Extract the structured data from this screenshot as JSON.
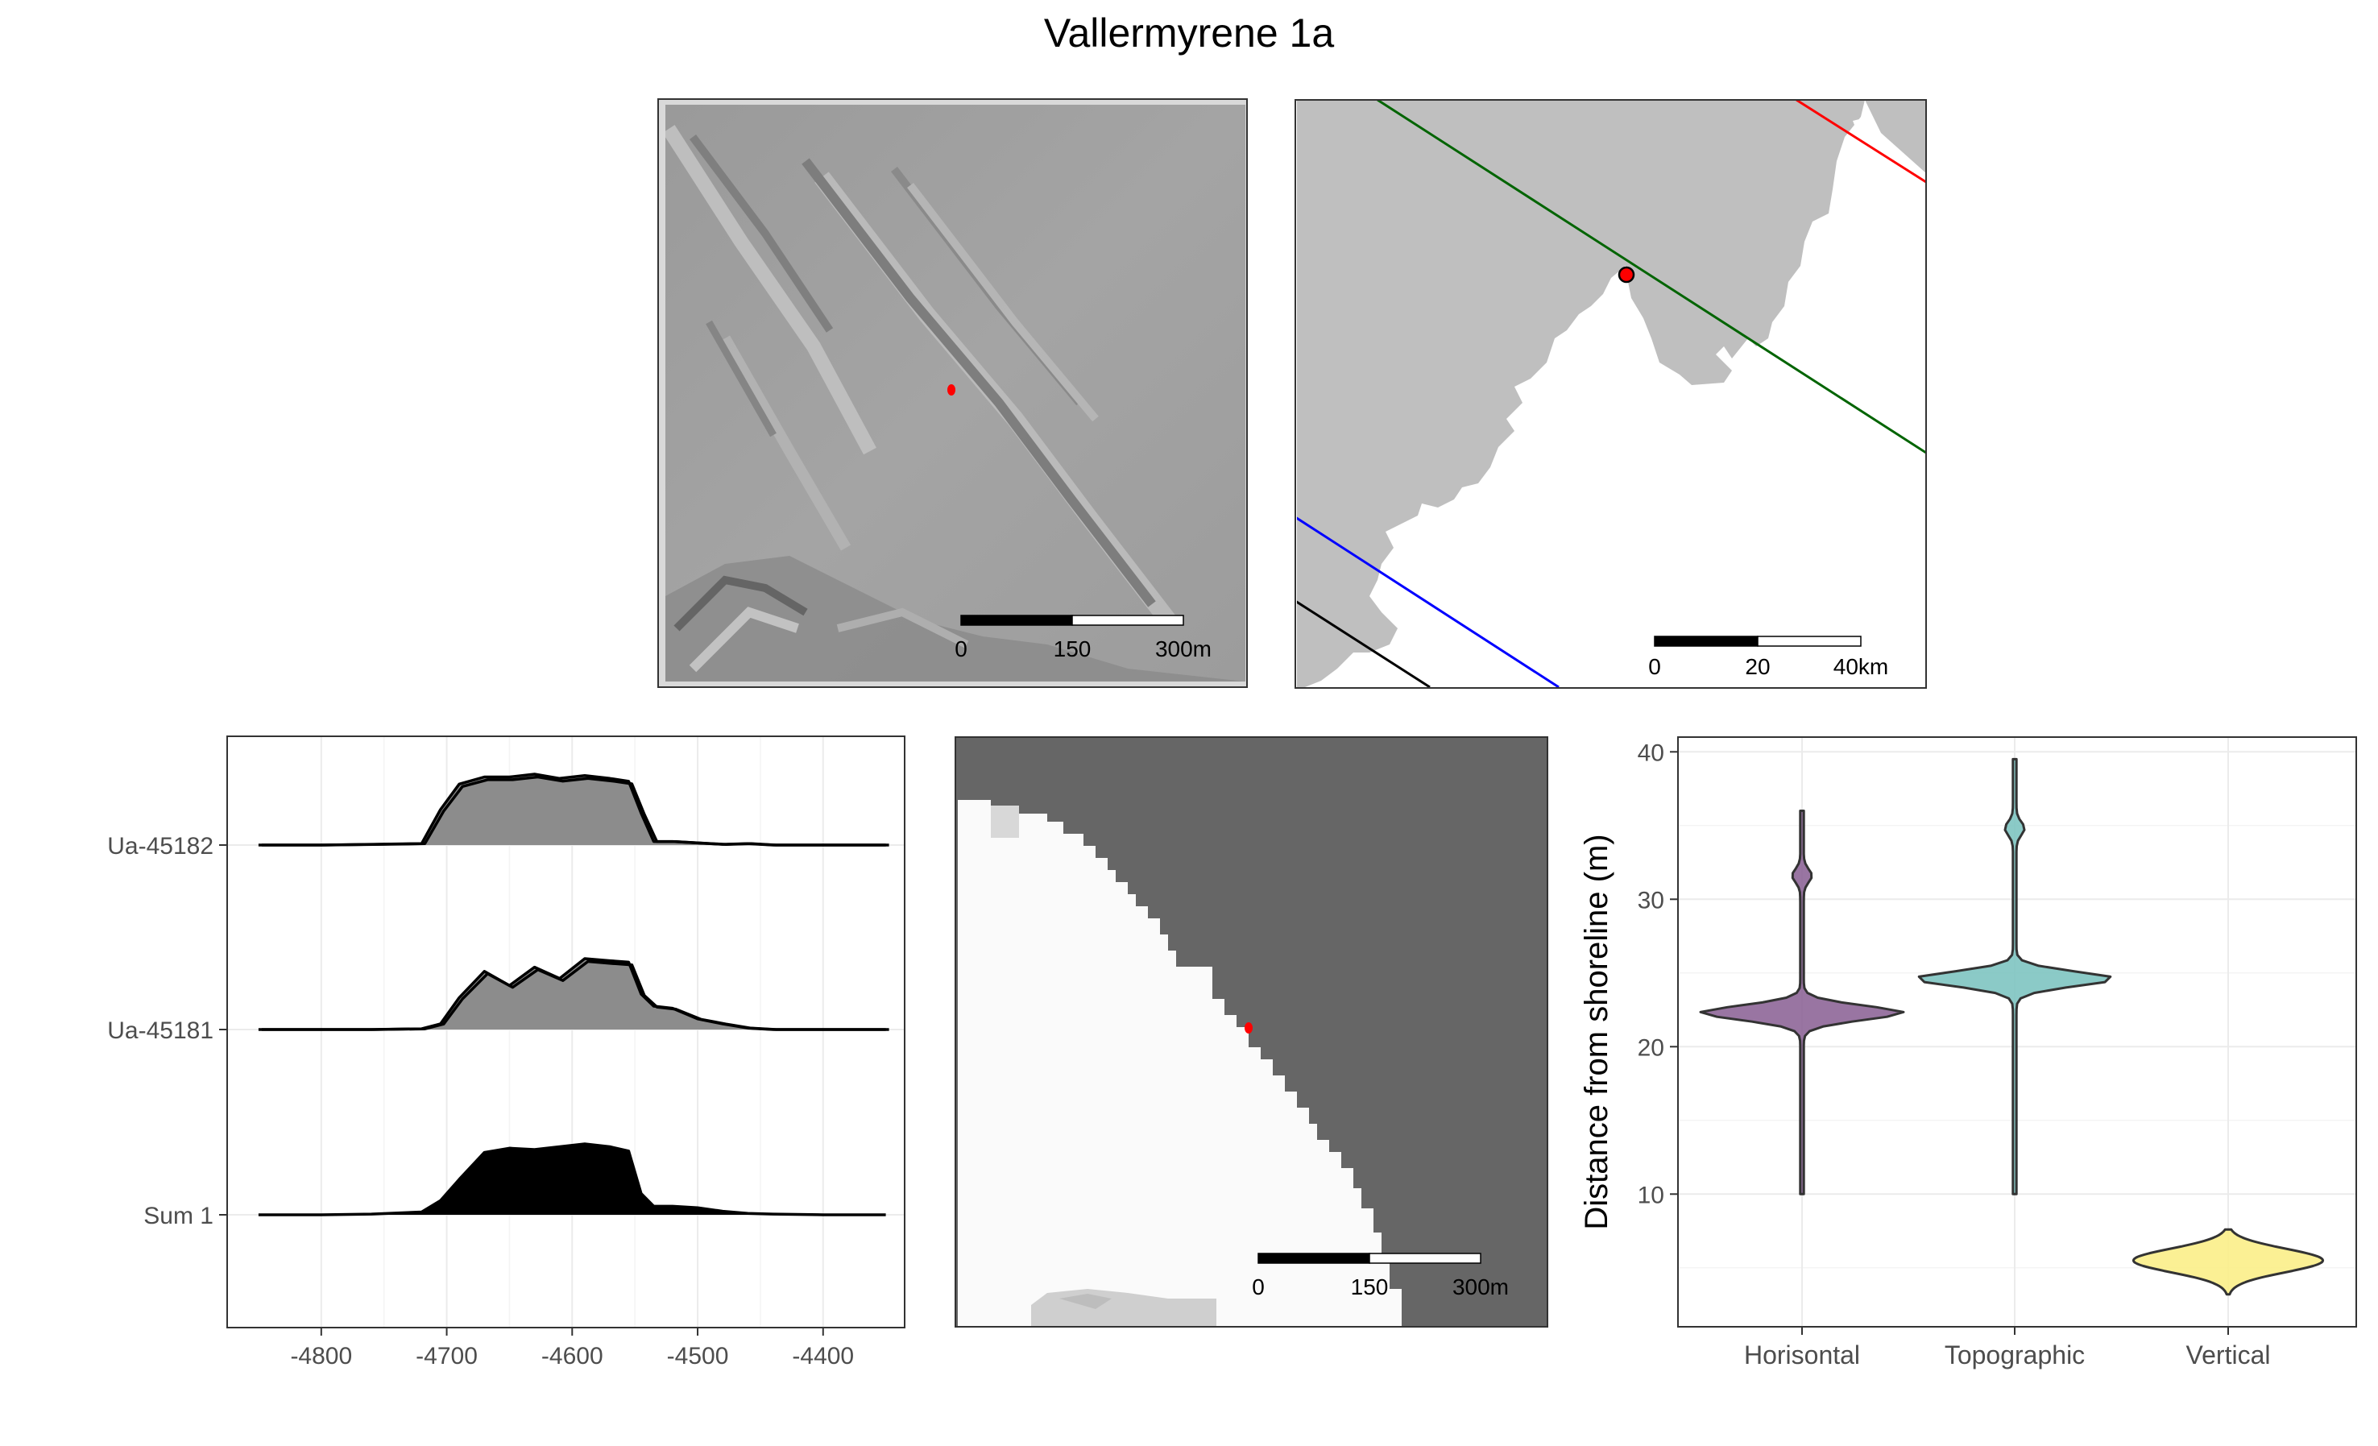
{
  "title": "Vallermyrene 1a",
  "colors": {
    "map_land": "#bfbfbf",
    "shoreline_green": "#006400",
    "shoreline_red": "#ff0000",
    "shoreline_blue": "#0000ff",
    "shoreline_black": "#000000",
    "site_point": "#ff0000",
    "raster_dark": "#666666",
    "raster_light": "#fafafa",
    "violin_horisontal": "#8e6698",
    "violin_topographic": "#7ec4c1",
    "violin_vertical": "#fbee88"
  },
  "hillshade_panel": {
    "scalebar": {
      "labels": [
        "0",
        "150",
        "300m"
      ]
    }
  },
  "overview_map": {
    "scalebar": {
      "labels": [
        "0",
        "20",
        "40km"
      ]
    }
  },
  "raster_panel": {
    "scalebar": {
      "labels": [
        "0",
        "150",
        "300m"
      ]
    }
  },
  "chart_data": [
    {
      "type": "area",
      "subtype": "ridgeline",
      "x": [
        -4850,
        -4800,
        -4760,
        -4720,
        -4705,
        -4690,
        -4670,
        -4650,
        -4630,
        -4610,
        -4590,
        -4570,
        -4555,
        -4545,
        -4535,
        -4520,
        -4500,
        -4480,
        -4460,
        -4440,
        -4400,
        -4350
      ],
      "xticks": [
        -4800,
        -4700,
        -4600,
        -4500,
        -4400
      ],
      "xlim": [
        -4875,
        -4335
      ],
      "grid": true,
      "series": [
        {
          "name": "Ua-45182",
          "values": [
            0,
            0,
            0.01,
            0.02,
            0.5,
            0.86,
            0.96,
            0.96,
            1.0,
            0.94,
            0.98,
            0.94,
            0.9,
            0.45,
            0.05,
            0.05,
            0.03,
            0.01,
            0.02,
            0,
            0,
            0
          ]
        },
        {
          "name": "Ua-45181",
          "values": [
            0,
            0,
            0,
            0.01,
            0.08,
            0.45,
            0.82,
            0.62,
            0.88,
            0.72,
            1.0,
            0.97,
            0.95,
            0.5,
            0.33,
            0.3,
            0.15,
            0.08,
            0.02,
            0,
            0,
            0
          ]
        },
        {
          "name": "Sum 1",
          "values": [
            0,
            0,
            0.01,
            0.04,
            0.2,
            0.5,
            0.88,
            0.94,
            0.92,
            0.96,
            1.0,
            0.96,
            0.9,
            0.3,
            0.12,
            0.12,
            0.1,
            0.05,
            0.02,
            0.01,
            0,
            0
          ]
        }
      ]
    },
    {
      "type": "violin",
      "categories": [
        "Horisontal",
        "Topographic",
        "Vertical"
      ],
      "ylabel": "Distance from shoreline (m)",
      "yticks": [
        10,
        20,
        30,
        40
      ],
      "ylim": [
        1,
        41
      ],
      "grid": true,
      "series": [
        {
          "category": "Horisontal",
          "min": 10,
          "max": 36,
          "mode": 22.3,
          "secondary_mode": 31.6,
          "color": "#8e6698"
        },
        {
          "category": "Topographic",
          "min": 10,
          "max": 39.5,
          "mode": 24.6,
          "secondary_mode": 34.8,
          "color": "#7ec4c1"
        },
        {
          "category": "Vertical",
          "min": 3.2,
          "max": 7.6,
          "mode": 5.5,
          "secondary_mode": null,
          "color": "#fbee88"
        }
      ]
    }
  ]
}
